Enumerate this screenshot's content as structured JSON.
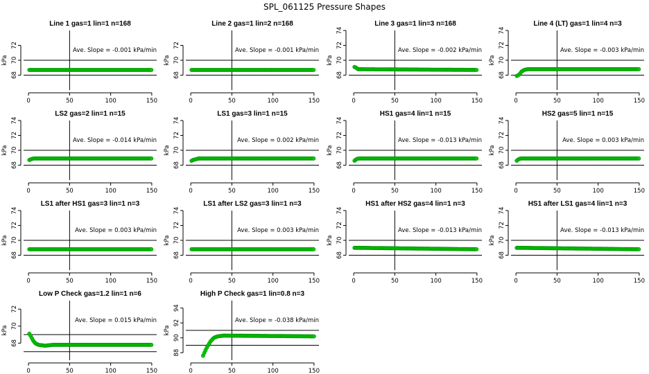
{
  "title": "SPL_061125  Pressure Shapes",
  "chart_data": [
    {
      "type": "scatter",
      "title": "Line 1 gas=1 lin=1 n=168",
      "ylabel": "kPa",
      "xlim": [
        0,
        150
      ],
      "ylim": [
        66,
        74
      ],
      "xticks": [
        "0",
        "50",
        "100",
        "150"
      ],
      "yticks": [
        "68",
        "70",
        "72"
      ],
      "hlines": [
        68,
        70
      ],
      "vline": 50,
      "slope_text": "Ave. Slope = -0.001  kPa/min",
      "x": [
        1,
        150
      ],
      "y": [
        68.7,
        68.7
      ]
    },
    {
      "type": "scatter",
      "title": "Line 2 gas=1 lin=2 n=168",
      "ylabel": "kPa",
      "xlim": [
        0,
        150
      ],
      "ylim": [
        66,
        74
      ],
      "xticks": [
        "0",
        "50",
        "100",
        "150"
      ],
      "yticks": [
        "68",
        "70",
        "72"
      ],
      "hlines": [
        68,
        70
      ],
      "vline": 50,
      "slope_text": "Ave. Slope = -0.001  kPa/min",
      "x": [
        1,
        150
      ],
      "y": [
        68.7,
        68.7
      ]
    },
    {
      "type": "scatter",
      "title": "Line 3 gas=1 lin=3 n=168",
      "ylabel": "kPa",
      "xlim": [
        0,
        150
      ],
      "ylim": [
        66,
        74
      ],
      "xticks": [
        "0",
        "50",
        "100",
        "150"
      ],
      "yticks": [
        "68",
        "70",
        "72",
        "74"
      ],
      "hlines": [
        68,
        70
      ],
      "vline": 50,
      "slope_text": "Ave. Slope = -0.002  kPa/min",
      "x": [
        1,
        3,
        5,
        150
      ],
      "y": [
        69.1,
        69.0,
        68.8,
        68.7
      ]
    },
    {
      "type": "scatter",
      "title": "Line 4 (LT) gas=1 lin=4 n=3",
      "ylabel": "kPa",
      "xlim": [
        0,
        150
      ],
      "ylim": [
        66,
        74
      ],
      "xticks": [
        "0",
        "50",
        "100",
        "150"
      ],
      "yticks": [
        "68",
        "70",
        "72",
        "74"
      ],
      "hlines": [
        68,
        70
      ],
      "vline": 50,
      "slope_text": "Ave. Slope = -0.003  kPa/min",
      "x": [
        1,
        3,
        5,
        7,
        10,
        14,
        150
      ],
      "y": [
        67.9,
        68.0,
        68.2,
        68.5,
        68.7,
        68.8,
        68.8
      ]
    },
    {
      "type": "scatter",
      "title": "LS2 gas=2 lin=1 n=15",
      "ylabel": "kPa",
      "xlim": [
        0,
        150
      ],
      "ylim": [
        66,
        74
      ],
      "xticks": [
        "0",
        "50",
        "100",
        "150"
      ],
      "yticks": [
        "68",
        "70",
        "72",
        "74"
      ],
      "hlines": [
        68,
        70
      ],
      "vline": 50,
      "slope_text": "Ave. Slope = -0.014  kPa/min",
      "x": [
        1,
        3,
        6,
        10,
        150
      ],
      "y": [
        68.7,
        68.8,
        68.9,
        68.9,
        68.9
      ]
    },
    {
      "type": "scatter",
      "title": "LS1 gas=3 lin=1 n=15",
      "ylabel": "kPa",
      "xlim": [
        0,
        150
      ],
      "ylim": [
        66,
        74
      ],
      "xticks": [
        "0",
        "50",
        "100",
        "150"
      ],
      "yticks": [
        "68",
        "70",
        "72",
        "74"
      ],
      "hlines": [
        68,
        70
      ],
      "vline": 50,
      "slope_text": "Ave. Slope = 0.002  kPa/min",
      "x": [
        1,
        3,
        6,
        10,
        150
      ],
      "y": [
        68.6,
        68.7,
        68.8,
        68.9,
        68.9
      ]
    },
    {
      "type": "scatter",
      "title": "HS1 gas=4 lin=1 n=15",
      "ylabel": "kPa",
      "xlim": [
        0,
        150
      ],
      "ylim": [
        66,
        74
      ],
      "xticks": [
        "0",
        "50",
        "100",
        "150"
      ],
      "yticks": [
        "68",
        "70",
        "72",
        "74"
      ],
      "hlines": [
        68,
        70
      ],
      "vline": 50,
      "slope_text": "Ave. Slope = -0.013  kPa/min",
      "x": [
        1,
        3,
        6,
        10,
        150
      ],
      "y": [
        68.6,
        68.8,
        68.9,
        68.9,
        68.9
      ]
    },
    {
      "type": "scatter",
      "title": "HS2 gas=5 lin=1 n=15",
      "ylabel": "kPa",
      "xlim": [
        0,
        150
      ],
      "ylim": [
        66,
        74
      ],
      "xticks": [
        "0",
        "50",
        "100",
        "150"
      ],
      "yticks": [
        "68",
        "70",
        "72",
        "74"
      ],
      "hlines": [
        68,
        70
      ],
      "vline": 50,
      "slope_text": "Ave. Slope = 0.003  kPa/min",
      "x": [
        1,
        3,
        6,
        10,
        150
      ],
      "y": [
        68.6,
        68.8,
        68.9,
        68.9,
        68.9
      ]
    },
    {
      "type": "scatter",
      "title": "LS1 after HS1 gas=3 lin=1 n=3",
      "ylabel": "kPa",
      "xlim": [
        0,
        150
      ],
      "ylim": [
        66,
        74
      ],
      "xticks": [
        "0",
        "50",
        "100",
        "150"
      ],
      "yticks": [
        "68",
        "70",
        "72",
        "74"
      ],
      "hlines": [
        68,
        70
      ],
      "vline": 50,
      "slope_text": "Ave. Slope = 0.003  kPa/min",
      "x": [
        1,
        150
      ],
      "y": [
        68.8,
        68.8
      ]
    },
    {
      "type": "scatter",
      "title": "LS1 after LS2 gas=3 lin=1 n=3",
      "ylabel": "kPa",
      "xlim": [
        0,
        150
      ],
      "ylim": [
        66,
        74
      ],
      "xticks": [
        "0",
        "50",
        "100",
        "150"
      ],
      "yticks": [
        "68",
        "70",
        "72",
        "74"
      ],
      "hlines": [
        68,
        70
      ],
      "vline": 50,
      "slope_text": "Ave. Slope = 0.003  kPa/min",
      "x": [
        1,
        150
      ],
      "y": [
        68.8,
        68.8
      ]
    },
    {
      "type": "scatter",
      "title": "HS1 after HS2 gas=4 lin=1 n=3",
      "ylabel": "kPa",
      "xlim": [
        0,
        150
      ],
      "ylim": [
        66,
        74
      ],
      "xticks": [
        "0",
        "50",
        "100",
        "150"
      ],
      "yticks": [
        "68",
        "70",
        "72",
        "74"
      ],
      "hlines": [
        68,
        70
      ],
      "vline": 50,
      "slope_text": "Ave. Slope = -0.013  kPa/min",
      "x": [
        1,
        150
      ],
      "y": [
        69.0,
        68.8
      ]
    },
    {
      "type": "scatter",
      "title": "HS1 after LS1 gas=4 lin=1 n=3",
      "ylabel": "kPa",
      "xlim": [
        0,
        150
      ],
      "ylim": [
        66,
        74
      ],
      "xticks": [
        "0",
        "50",
        "100",
        "150"
      ],
      "yticks": [
        "68",
        "70",
        "72",
        "74"
      ],
      "hlines": [
        68,
        70
      ],
      "vline": 50,
      "slope_text": "Ave. Slope = -0.013  kPa/min",
      "x": [
        1,
        150
      ],
      "y": [
        69.0,
        68.8
      ]
    },
    {
      "type": "scatter",
      "title": "Low P Check gas=1.2 lin=1 n=6",
      "ylabel": "kPa",
      "xlim": [
        0,
        150
      ],
      "ylim": [
        66,
        73
      ],
      "xticks": [
        "0",
        "50",
        "100",
        "150"
      ],
      "yticks": [
        "68",
        "70",
        "72"
      ],
      "hlines": [
        67,
        69
      ],
      "vline": 50,
      "slope_text": "Ave. Slope = 0.015  kPa/min",
      "x": [
        1,
        3,
        5,
        8,
        12,
        20,
        30,
        150
      ],
      "y": [
        69.1,
        68.8,
        68.4,
        68.0,
        67.8,
        67.7,
        67.8,
        67.8
      ]
    },
    {
      "type": "scatter",
      "title": "High P Check gas=1 lin=0.8 n=3",
      "ylabel": "kPa",
      "xlim": [
        0,
        150
      ],
      "ylim": [
        87,
        95
      ],
      "xticks": [
        "0",
        "50",
        "100",
        "150"
      ],
      "yticks": [
        "88",
        "90",
        "92",
        "94"
      ],
      "hlines": [
        89,
        91
      ],
      "vline": 50,
      "slope_text": "Ave. Slope = -0.038  kPa/min",
      "x": [
        15,
        17,
        20,
        24,
        28,
        33,
        40,
        150
      ],
      "y": [
        87.6,
        88.1,
        88.8,
        89.5,
        90.0,
        90.2,
        90.3,
        90.2
      ]
    }
  ]
}
